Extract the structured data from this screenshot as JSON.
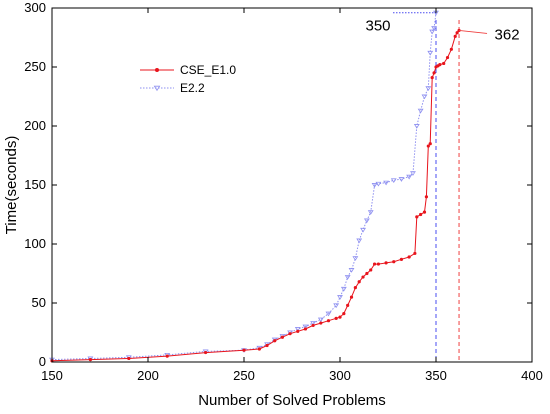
{
  "chart_data": {
    "type": "line",
    "xlabel": "Number of Solved Problems",
    "ylabel": "Time(seconds)",
    "xlim": [
      150,
      400
    ],
    "ylim": [
      0,
      300
    ],
    "xticks": [
      "150",
      "200",
      "250",
      "300",
      "350",
      "400"
    ],
    "yticks": [
      "0",
      "50",
      "100",
      "150",
      "200",
      "250",
      "300"
    ],
    "grid": false,
    "legend_position": "upper-left",
    "series": [
      {
        "name": "CSE_E1.0",
        "color": "#e8141c",
        "marker": "dot",
        "line_style": "solid",
        "x": [
          150,
          170,
          190,
          210,
          230,
          250,
          258,
          262,
          266,
          270,
          274,
          278,
          282,
          286,
          290,
          294,
          298,
          300,
          302,
          304,
          306,
          308,
          310,
          312,
          314,
          316,
          318,
          320,
          324,
          328,
          332,
          336,
          339,
          340,
          342,
          344,
          345,
          346,
          347,
          348,
          349,
          350,
          351,
          352,
          354,
          356,
          358,
          360,
          361,
          362
        ],
        "y": [
          1,
          2,
          3,
          5,
          8,
          10,
          11,
          14,
          18,
          21,
          24,
          26,
          28,
          31,
          33,
          35,
          37,
          38,
          41,
          48,
          55,
          63,
          68,
          72,
          75,
          78,
          83,
          83,
          84,
          85,
          87,
          89,
          92,
          123,
          125,
          127,
          140,
          183,
          185,
          241,
          245,
          250,
          251,
          252,
          253,
          258,
          265,
          276,
          279,
          281
        ]
      },
      {
        "name": "E2.2",
        "color": "#8d8ff0",
        "marker": "triangle-down",
        "line_style": "dotted",
        "x": [
          150,
          170,
          190,
          210,
          230,
          250,
          258,
          262,
          266,
          270,
          274,
          278,
          282,
          286,
          290,
          294,
          298,
          300,
          302,
          304,
          306,
          308,
          310,
          312,
          314,
          316,
          318,
          320,
          324,
          328,
          332,
          336,
          338,
          340,
          342,
          344,
          346,
          347,
          348,
          349,
          350
        ],
        "y": [
          2,
          3,
          4,
          6,
          9,
          10,
          12,
          15,
          19,
          22,
          25,
          28,
          30,
          33,
          36,
          41,
          48,
          55,
          62,
          72,
          78,
          88,
          103,
          112,
          120,
          127,
          150,
          151,
          152,
          154,
          155,
          157,
          160,
          200,
          213,
          225,
          232,
          262,
          280,
          283,
          296
        ]
      }
    ],
    "vertical_lines": [
      {
        "x": 350,
        "color": "#4a4cf0"
      },
      {
        "x": 362,
        "color": "#ef4040"
      }
    ],
    "annotations": [
      {
        "text": "350",
        "x": 350,
        "y": 296
      },
      {
        "text": "362",
        "x": 362,
        "y": 281
      }
    ]
  }
}
